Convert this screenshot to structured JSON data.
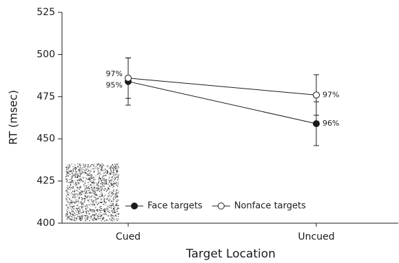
{
  "chart_data": {
    "type": "line",
    "xlabel": "Target Location",
    "ylabel": "RT (msec)",
    "categories": [
      "Cued",
      "Uncued"
    ],
    "series": [
      {
        "name": "Face targets",
        "color": "#1a1a1a",
        "marker": "filled",
        "values": [
          484,
          459
        ],
        "errors": [
          14,
          13
        ],
        "accuracy_labels": [
          "95%",
          "96%"
        ]
      },
      {
        "name": "Nonface targets",
        "color": "#1a1a1a",
        "marker": "open",
        "values": [
          486,
          476
        ],
        "errors": [
          12,
          12
        ],
        "accuracy_labels": [
          "97%",
          "97%"
        ]
      }
    ],
    "ylim": [
      400,
      525
    ],
    "yticks": [
      400,
      425,
      450,
      475,
      500,
      525
    ],
    "grid": false
  }
}
